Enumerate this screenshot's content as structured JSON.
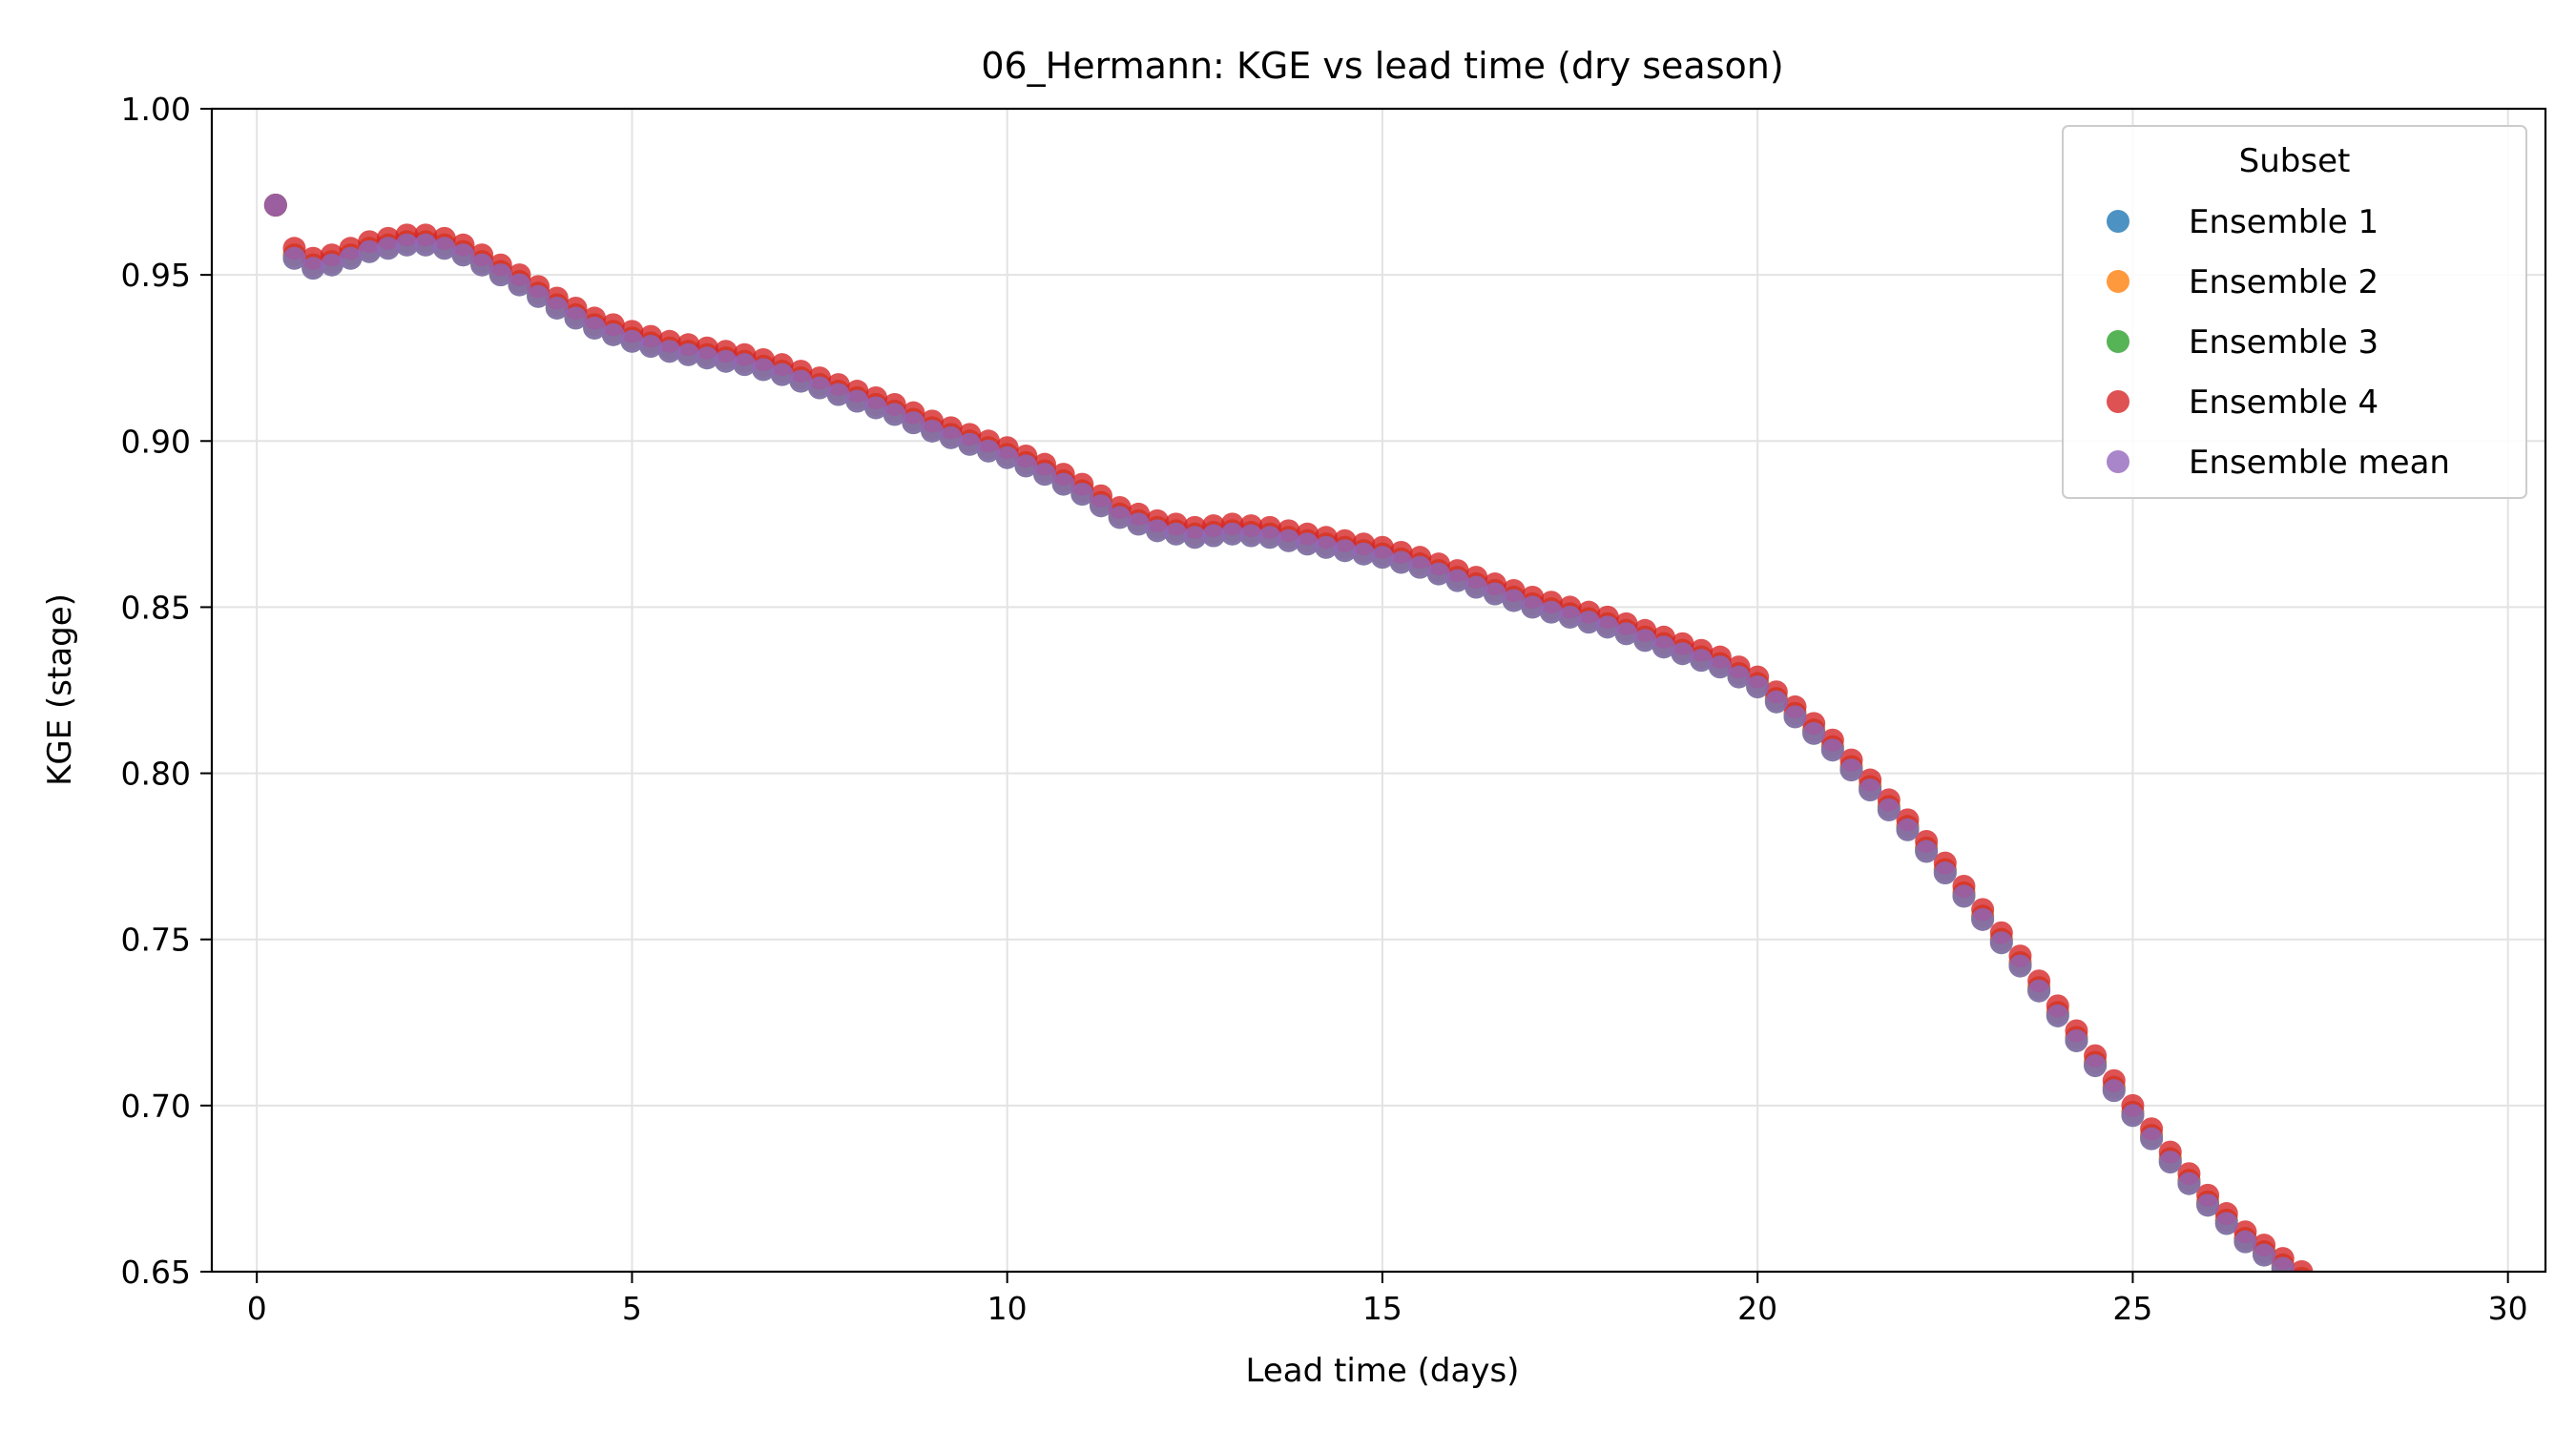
{
  "chart_data": {
    "type": "scatter",
    "title": "06_Hermann: KGE vs lead time (dry season)",
    "xlabel": "Lead time (days)",
    "ylabel": "KGE (stage)",
    "xlim": [
      -0.6,
      30.5
    ],
    "ylim": [
      0.65,
      1.0
    ],
    "xticks": [
      0,
      5,
      10,
      15,
      20,
      25,
      30
    ],
    "xtick_labels": [
      "0",
      "5",
      "10",
      "15",
      "20",
      "25",
      "30"
    ],
    "yticks": [
      0.65,
      0.7,
      0.75,
      0.8,
      0.85,
      0.9,
      0.95,
      1.0
    ],
    "ytick_labels": [
      "0.65",
      "0.70",
      "0.75",
      "0.80",
      "0.85",
      "0.90",
      "0.95",
      "1.00"
    ],
    "grid": true,
    "legend": {
      "title": "Subset",
      "position": "top-right",
      "entries": [
        "Ensemble 1",
        "Ensemble 2",
        "Ensemble 3",
        "Ensemble 4",
        "Ensemble mean"
      ]
    },
    "series": [
      {
        "name": "Ensemble 1",
        "color": "#1f77b4",
        "offset": 0.0
      },
      {
        "name": "Ensemble 2",
        "color": "#ff7f0e",
        "offset": 0.0
      },
      {
        "name": "Ensemble 3",
        "color": "#2ca02c",
        "offset": -0.001
      },
      {
        "name": "Ensemble 4",
        "color": "#d62728",
        "offset": 0.002
      },
      {
        "name": "Ensemble mean",
        "color": "#9467bd",
        "offset": -0.001
      }
    ],
    "lead_time_step": 0.25,
    "curve": [
      [
        0.25,
        0.971
      ],
      [
        0.5,
        0.956
      ],
      [
        0.75,
        0.953
      ],
      [
        1.0,
        0.954
      ],
      [
        1.25,
        0.956
      ],
      [
        1.5,
        0.958
      ],
      [
        1.75,
        0.959
      ],
      [
        2.0,
        0.96
      ],
      [
        2.25,
        0.96
      ],
      [
        2.5,
        0.959
      ],
      [
        2.75,
        0.957
      ],
      [
        3.0,
        0.954
      ],
      [
        3.5,
        0.948
      ],
      [
        4.0,
        0.941
      ],
      [
        4.5,
        0.935
      ],
      [
        5.0,
        0.931
      ],
      [
        5.5,
        0.928
      ],
      [
        6.0,
        0.926
      ],
      [
        6.5,
        0.924
      ],
      [
        7.0,
        0.921
      ],
      [
        7.5,
        0.917
      ],
      [
        8.0,
        0.913
      ],
      [
        8.5,
        0.909
      ],
      [
        9.0,
        0.904
      ],
      [
        9.5,
        0.9
      ],
      [
        10.0,
        0.896
      ],
      [
        10.5,
        0.891
      ],
      [
        11.0,
        0.885
      ],
      [
        11.5,
        0.878
      ],
      [
        12.0,
        0.874
      ],
      [
        12.5,
        0.872
      ],
      [
        13.0,
        0.873
      ],
      [
        13.5,
        0.872
      ],
      [
        14.0,
        0.87
      ],
      [
        14.5,
        0.868
      ],
      [
        15.0,
        0.866
      ],
      [
        15.5,
        0.863
      ],
      [
        16.0,
        0.859
      ],
      [
        16.5,
        0.855
      ],
      [
        17.0,
        0.851
      ],
      [
        17.5,
        0.848
      ],
      [
        18.0,
        0.845
      ],
      [
        18.5,
        0.841
      ],
      [
        19.0,
        0.837
      ],
      [
        19.5,
        0.833
      ],
      [
        20.0,
        0.827
      ],
      [
        20.5,
        0.818
      ],
      [
        21.0,
        0.808
      ],
      [
        21.5,
        0.796
      ],
      [
        22.0,
        0.784
      ],
      [
        22.5,
        0.771
      ],
      [
        23.0,
        0.757
      ],
      [
        23.5,
        0.743
      ],
      [
        24.0,
        0.728
      ],
      [
        24.5,
        0.713
      ],
      [
        25.0,
        0.698
      ],
      [
        25.5,
        0.684
      ],
      [
        26.0,
        0.671
      ],
      [
        26.5,
        0.66
      ],
      [
        27.0,
        0.652
      ],
      [
        27.25,
        0.648
      ]
    ]
  }
}
